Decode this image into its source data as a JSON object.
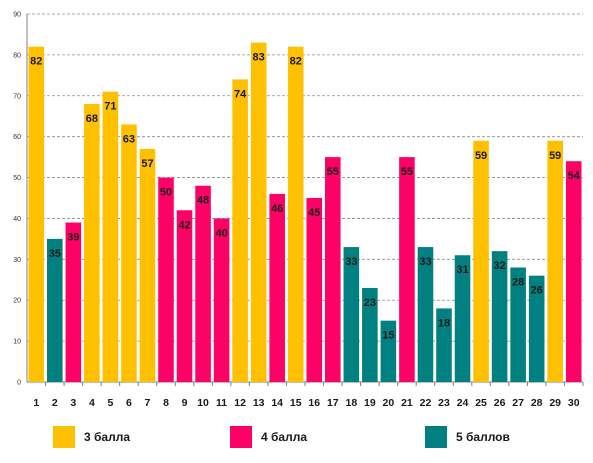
{
  "chart_data": {
    "type": "bar",
    "categories": [
      "1",
      "2",
      "3",
      "4",
      "5",
      "6",
      "7",
      "8",
      "9",
      "10",
      "11",
      "12",
      "13",
      "14",
      "15",
      "16",
      "17",
      "18",
      "19",
      "20",
      "21",
      "22",
      "23",
      "24",
      "25",
      "26",
      "27",
      "28",
      "29",
      "30"
    ],
    "values": [
      82,
      35,
      39,
      68,
      71,
      63,
      57,
      50,
      42,
      48,
      40,
      74,
      83,
      46,
      82,
      45,
      55,
      33,
      23,
      15,
      55,
      33,
      18,
      31,
      59,
      32,
      28,
      26,
      59,
      54
    ],
    "groups": [
      "3",
      "5",
      "4",
      "3",
      "3",
      "3",
      "3",
      "4",
      "4",
      "4",
      "4",
      "3",
      "3",
      "4",
      "3",
      "4",
      "4",
      "5",
      "5",
      "5",
      "4",
      "5",
      "5",
      "5",
      "3",
      "5",
      "5",
      "5",
      "3",
      "4"
    ],
    "ylim": [
      0,
      90
    ],
    "yticks": [
      0,
      10,
      20,
      30,
      40,
      50,
      60,
      70,
      80,
      90
    ],
    "grid": true,
    "legend_position": "bottom",
    "colors": {
      "3": "#ffc000",
      "4": "#ff0066",
      "5": "#008080"
    },
    "title": "",
    "xlabel": "",
    "ylabel": ""
  },
  "legend": {
    "items": [
      {
        "key": "3",
        "label": "3 балла",
        "color": "#ffc000"
      },
      {
        "key": "4",
        "label": "4 балла",
        "color": "#ff0066"
      },
      {
        "key": "5",
        "label": "5 баллов",
        "color": "#008080"
      }
    ]
  }
}
